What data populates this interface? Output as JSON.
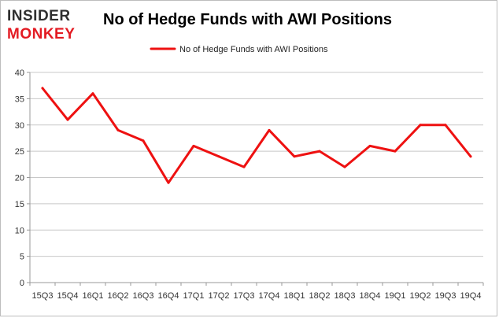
{
  "logo": {
    "line1": "INSIDER",
    "line2": "MONKEY"
  },
  "colors": {
    "series": "#ee1111",
    "logo_dark": "#2f2f2f",
    "logo_red": "#e31b23",
    "grid": "#c8c8c8"
  },
  "chart_data": {
    "type": "line",
    "title": "No of Hedge Funds with AWI Positions",
    "xlabel": "",
    "ylabel": "",
    "categories": [
      "15Q3",
      "15Q4",
      "16Q1",
      "16Q2",
      "16Q3",
      "16Q4",
      "17Q1",
      "17Q2",
      "17Q3",
      "17Q4",
      "18Q1",
      "18Q2",
      "18Q3",
      "18Q4",
      "19Q1",
      "19Q2",
      "19Q3",
      "19Q4"
    ],
    "series": [
      {
        "name": "No of Hedge Funds with AWI Positions",
        "values": [
          37,
          31,
          36,
          29,
          27,
          19,
          26,
          24,
          22,
          29,
          24,
          25,
          22,
          26,
          25,
          30,
          30,
          24
        ]
      }
    ],
    "ylim": [
      0,
      40
    ],
    "yticks": [
      0,
      5,
      10,
      15,
      20,
      25,
      30,
      35,
      40
    ],
    "grid": true,
    "legend_position": "top-center"
  }
}
